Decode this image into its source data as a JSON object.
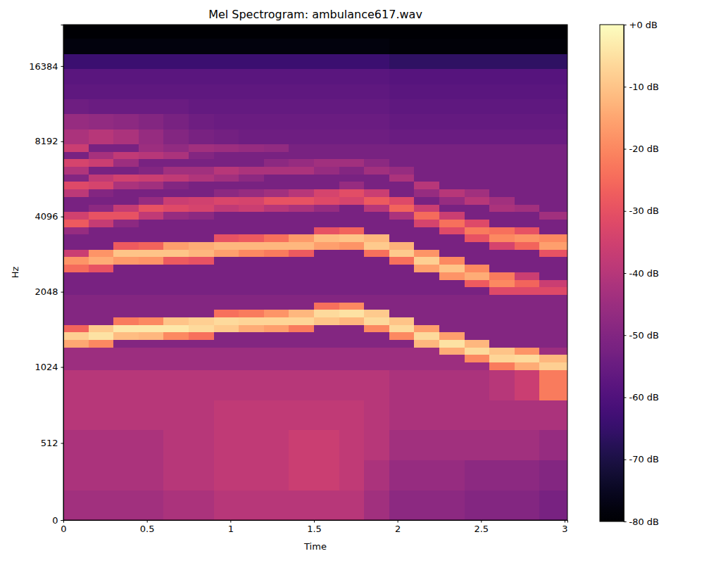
{
  "chart_data": {
    "type": "heatmap",
    "title": "Mel Spectrogram: ambulance617.wav",
    "x_label": "Time",
    "y_label": "Hz",
    "log": "y",
    "color": "magma",
    "x": [
      0,
      0.15,
      0.3,
      0.45,
      0.6,
      0.75,
      0.9,
      1.05,
      1.2,
      1.35,
      1.5,
      1.65,
      1.8,
      1.95,
      2.1,
      2.25,
      2.4,
      2.55,
      2.7,
      2.85,
      3.017
    ],
    "y": [
      0,
      200,
      400,
      600,
      800,
      1000,
      1072,
      1149,
      1231,
      1320,
      1414,
      1516,
      1625,
      1741,
      1866,
      2000,
      2144,
      2297,
      2462,
      2639,
      2828,
      3031,
      3249,
      3482,
      3732,
      4000,
      4287,
      4595,
      4925,
      5278,
      5657,
      6063,
      6498,
      6964,
      7464,
      8000,
      9190,
      10556,
      12126,
      13929,
      16000,
      18379,
      21112,
      24000
    ],
    "xlim": [
      0,
      3.017
    ],
    "ylim": [
      0,
      24000
    ],
    "xticks": [
      0,
      0.5,
      1,
      1.5,
      2,
      2.5,
      3
    ],
    "yticks": [
      0,
      512,
      1024,
      2048,
      4096,
      8192,
      16384
    ],
    "values": [
      [
        -44,
        -42,
        -42,
        -40,
        -40,
        -45,
        -45,
        -45,
        -15,
        -8,
        -26,
        -50,
        -50,
        -50,
        -50,
        -52,
        -52,
        -52,
        -25,
        -18,
        -36,
        -52,
        -52,
        -46,
        -28,
        -35,
        -52,
        -52,
        -39,
        -32,
        -50,
        -41,
        -34,
        -52,
        -36,
        -42,
        -46,
        -54,
        -57,
        -58,
        -64,
        -78,
        -80
      ],
      [
        -44,
        -42,
        -42,
        -40,
        -40,
        -45,
        -45,
        -45,
        -20,
        -5,
        -9,
        -50,
        -50,
        -50,
        -50,
        -52,
        -52,
        -52,
        -30,
        -14,
        -18,
        -52,
        -52,
        -52,
        -37,
        -30,
        -48,
        -52,
        -50,
        -34,
        -38,
        -52,
        -36,
        -43,
        -52,
        -40,
        -47,
        -55,
        -57,
        -58,
        -64,
        -78,
        -80
      ],
      [
        -44,
        -42,
        -42,
        -40,
        -40,
        -45,
        -45,
        -45,
        -50,
        -11,
        -4,
        -22,
        -50,
        -50,
        -50,
        -52,
        -52,
        -52,
        -52,
        -17,
        -10,
        -28,
        -52,
        -52,
        -48,
        -30,
        -37,
        -52,
        -52,
        -42,
        -35,
        -52,
        -45,
        -38,
        -52,
        -42,
        -48,
        -55,
        -57,
        -58,
        -64,
        -78,
        -80
      ],
      [
        -44,
        -42,
        -42,
        -40,
        -40,
        -45,
        -45,
        -45,
        -50,
        -12,
        -4,
        -20,
        -50,
        -50,
        -50,
        -52,
        -52,
        -52,
        -52,
        -18,
        -10,
        -26,
        -52,
        -52,
        -52,
        -38,
        -30,
        -46,
        -52,
        -44,
        -36,
        -50,
        -52,
        -40,
        -45,
        -46,
        -50,
        -55,
        -57,
        -58,
        -64,
        -78,
        -80
      ],
      [
        -42,
        -40,
        -40,
        -40,
        -40,
        -45,
        -45,
        -45,
        -50,
        -20,
        -4,
        -10,
        -50,
        -50,
        -50,
        -52,
        -52,
        -52,
        -52,
        -28,
        -10,
        -16,
        -52,
        -52,
        -52,
        -46,
        -32,
        -36,
        -52,
        -50,
        -38,
        -44,
        -52,
        -42,
        -47,
        -50,
        -52,
        -55,
        -57,
        -58,
        -64,
        -78,
        -80
      ],
      [
        -42,
        -40,
        -40,
        -40,
        -40,
        -45,
        -45,
        -45,
        -50,
        -24,
        -6,
        -8,
        -50,
        -50,
        -50,
        -52,
        -52,
        -52,
        -52,
        -30,
        -12,
        -14,
        -52,
        -52,
        -52,
        -48,
        -34,
        -35,
        -52,
        -52,
        -41,
        -44,
        -52,
        -50,
        -44,
        -52,
        -54,
        -56,
        -57,
        -58,
        -64,
        -78,
        -80
      ],
      [
        -40,
        -38,
        -38,
        -38,
        -40,
        -45,
        -45,
        -45,
        -50,
        -50,
        -9,
        -6,
        -24,
        -50,
        -50,
        -52,
        -52,
        -52,
        -52,
        -52,
        -16,
        -12,
        -30,
        -52,
        -52,
        -52,
        -38,
        -33,
        -48,
        -52,
        -44,
        -40,
        -52,
        -52,
        -45,
        -53,
        -55,
        -56,
        -57,
        -58,
        -64,
        -78,
        -80
      ],
      [
        -40,
        -38,
        -38,
        -38,
        -40,
        -45,
        -45,
        -45,
        -50,
        -50,
        -14,
        -7,
        -22,
        -50,
        -50,
        -52,
        -52,
        -52,
        -52,
        -52,
        -20,
        -12,
        -28,
        -52,
        -52,
        -52,
        -36,
        -34,
        -46,
        -52,
        -48,
        -42,
        -52,
        -52,
        -46,
        -54,
        -55,
        -56,
        -57,
        -58,
        -64,
        -78,
        -80
      ],
      [
        -40,
        -38,
        -38,
        -38,
        -40,
        -45,
        -45,
        -45,
        -50,
        -50,
        -16,
        -7,
        -18,
        -50,
        -50,
        -52,
        -52,
        -52,
        -52,
        -52,
        -22,
        -12,
        -24,
        -52,
        -52,
        -52,
        -40,
        -30,
        -44,
        -52,
        -52,
        -42,
        -48,
        -52,
        -47,
        -54,
        -55,
        -56,
        -57,
        -58,
        -64,
        -78,
        -80
      ],
      [
        -40,
        -36,
        -36,
        -38,
        -40,
        -45,
        -45,
        -45,
        -50,
        -50,
        -22,
        -7,
        -12,
        -50,
        -50,
        -52,
        -52,
        -52,
        -52,
        -52,
        -28,
        -12,
        -17,
        -52,
        -52,
        -52,
        -42,
        -30,
        -40,
        -52,
        -52,
        -42,
        -46,
        -52,
        -52,
        -54,
        -55,
        -56,
        -57,
        -58,
        -64,
        -78,
        -80
      ],
      [
        -40,
        -36,
        -36,
        -38,
        -40,
        -45,
        -45,
        -45,
        -50,
        -50,
        -50,
        -10,
        -6,
        -24,
        -50,
        -52,
        -52,
        -52,
        -52,
        -52,
        -52,
        -16,
        -11,
        -30,
        -52,
        -52,
        -46,
        -32,
        -34,
        -52,
        -52,
        -46,
        -44,
        -52,
        -52,
        -54,
        -55,
        -56,
        -57,
        -58,
        -64,
        -78,
        -80
      ],
      [
        -40,
        -38,
        -38,
        -38,
        -40,
        -45,
        -45,
        -45,
        -50,
        -50,
        -50,
        -12,
        -5,
        -20,
        -50,
        -52,
        -52,
        -52,
        -52,
        -52,
        -52,
        -18,
        -10,
        -26,
        -52,
        -52,
        -52,
        -34,
        -31,
        -46,
        -52,
        -50,
        -44,
        -52,
        -52,
        -54,
        -55,
        -56,
        -57,
        -58,
        -64,
        -78,
        -80
      ],
      [
        -44,
        -42,
        -40,
        -40,
        -40,
        -45,
        -45,
        -45,
        -50,
        -50,
        -20,
        -6,
        -9,
        -50,
        -50,
        -52,
        -52,
        -52,
        -52,
        -52,
        -24,
        -9,
        -12,
        -52,
        -52,
        -52,
        -40,
        -28,
        -36,
        -52,
        -52,
        -44,
        -48,
        -52,
        -52,
        -54,
        -55,
        -56,
        -57,
        -58,
        -64,
        -78,
        -80
      ],
      [
        -48,
        -46,
        -44,
        -42,
        -42,
        -45,
        -45,
        -45,
        -50,
        -20,
        -6,
        -10,
        -50,
        -50,
        -50,
        -52,
        -52,
        -52,
        -52,
        -24,
        -9,
        -13,
        -52,
        -52,
        -52,
        -42,
        -26,
        -32,
        -52,
        -52,
        -42,
        -46,
        -52,
        -52,
        -52,
        -55,
        -56,
        -57,
        -58,
        -59,
        -66,
        -79,
        -80
      ],
      [
        -48,
        -46,
        -44,
        -42,
        -42,
        -45,
        -45,
        -45,
        -12,
        -6,
        -16,
        -50,
        -50,
        -50,
        -50,
        -52,
        -52,
        -52,
        -16,
        -8,
        -18,
        -52,
        -52,
        -52,
        -34,
        -25,
        -36,
        -52,
        -46,
        -40,
        -52,
        -52,
        -52,
        -52,
        -52,
        -55,
        -56,
        -57,
        -58,
        -59,
        -66,
        -79,
        -80
      ],
      [
        -48,
        -46,
        -44,
        -42,
        -42,
        -45,
        -45,
        -14,
        -5,
        -16,
        -50,
        -50,
        -50,
        -50,
        -50,
        -52,
        -52,
        -18,
        -10,
        -20,
        -52,
        -52,
        -52,
        -32,
        -24,
        -36,
        -52,
        -46,
        -40,
        -52,
        -52,
        -52,
        -52,
        -52,
        -52,
        -55,
        -56,
        -57,
        -58,
        -59,
        -66,
        -79,
        -80
      ],
      [
        -50,
        -48,
        -44,
        -42,
        -42,
        -45,
        -20,
        -6,
        -12,
        -50,
        -50,
        -50,
        -50,
        -50,
        -50,
        -52,
        -28,
        -14,
        -20,
        -52,
        -52,
        -52,
        -30,
        -22,
        -32,
        -52,
        -52,
        -40,
        -44,
        -52,
        -52,
        -52,
        -52,
        -52,
        -52,
        -55,
        -56,
        -57,
        -58,
        -59,
        -66,
        -79,
        -80
      ],
      [
        -50,
        -48,
        -44,
        -42,
        -40,
        -22,
        -7,
        -10,
        -50,
        -50,
        -50,
        -50,
        -50,
        -50,
        -50,
        -32,
        -20,
        -22,
        -52,
        -52,
        -52,
        -34,
        -20,
        -24,
        -52,
        -52,
        -42,
        -44,
        -52,
        -52,
        -52,
        -52,
        -52,
        -52,
        -52,
        -55,
        -56,
        -57,
        -58,
        -59,
        -66,
        -79,
        -80
      ],
      [
        -50,
        -48,
        -44,
        -42,
        -36,
        -14,
        -6,
        -18,
        -50,
        -50,
        -50,
        -50,
        -50,
        -50,
        -50,
        -32,
        -26,
        -36,
        -52,
        -52,
        -52,
        -26,
        -18,
        -30,
        -52,
        -52,
        -44,
        -52,
        -52,
        -52,
        -52,
        -52,
        -52,
        -52,
        -52,
        -55,
        -56,
        -57,
        -58,
        -59,
        -66,
        -79,
        -80
      ],
      [
        -52,
        -50,
        -46,
        -42,
        -22,
        -8,
        -12,
        -45,
        -50,
        -50,
        -50,
        -50,
        -50,
        -50,
        -50,
        -32,
        -36,
        -52,
        -52,
        -52,
        -30,
        -16,
        -20,
        -52,
        -52,
        -44,
        -52,
        -52,
        -52,
        -52,
        -52,
        -52,
        -52,
        -52,
        -52,
        -55,
        -56,
        -57,
        -58,
        -59,
        -66,
        -79,
        -80
      ]
    ],
    "colorbar_range": [
      -80,
      0
    ],
    "colorbar_ticks": [
      {
        "value": -80,
        "label": "-80 dB"
      },
      {
        "value": -70,
        "label": "-70 dB"
      },
      {
        "value": -60,
        "label": "-60 dB"
      },
      {
        "value": -50,
        "label": "-50 dB"
      },
      {
        "value": -40,
        "label": "-40 dB"
      },
      {
        "value": -30,
        "label": "-30 dB"
      },
      {
        "value": -20,
        "label": "-20 dB"
      },
      {
        "value": -10,
        "label": "-10 dB"
      },
      {
        "value": 0,
        "label": "+0 dB"
      }
    ]
  }
}
